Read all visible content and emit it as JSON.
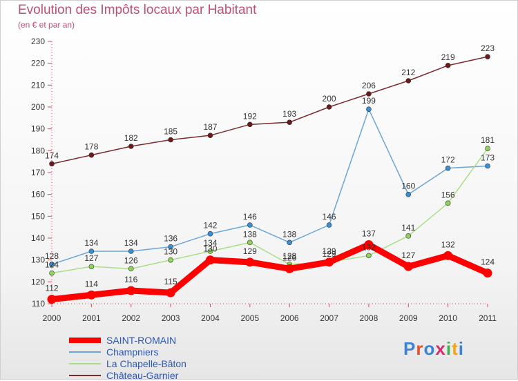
{
  "title": "Evolution des Impôts locaux par Habitant",
  "subtitle": "(en € et par an)",
  "logo": {
    "letters": [
      "P",
      "r",
      "o",
      "x",
      "i",
      "t",
      "i"
    ],
    "colors": [
      "#3b82d6",
      "#e0512f",
      "#3b82d6",
      "#d62b6e",
      "#3bb24a",
      "#f2a51a",
      "#3b82d6"
    ]
  },
  "chart_data": {
    "type": "line",
    "title": "Evolution des Impôts locaux par Habitant",
    "subtitle": "(en € et par an)",
    "xlabel": "",
    "ylabel": "",
    "categories": [
      "2000",
      "2001",
      "2002",
      "2003",
      "2004",
      "2005",
      "2006",
      "2007",
      "2008",
      "2009",
      "2010",
      "2011"
    ],
    "ylim": [
      110,
      230
    ],
    "yticks": [
      110,
      120,
      130,
      140,
      150,
      160,
      170,
      180,
      190,
      200,
      210,
      220,
      230
    ],
    "grid": false,
    "legend_position": "bottom-left",
    "series": [
      {
        "name": "SAINT-ROMAIN",
        "color": "#ff0000",
        "marker": "#ff0000",
        "emphasis": true,
        "values": [
          112,
          114,
          116,
          115,
          130,
          129,
          126,
          129,
          137,
          127,
          132,
          124
        ]
      },
      {
        "name": "Champniers",
        "color": "#6aa5d8",
        "marker": "#3a8fd0",
        "emphasis": false,
        "values": [
          128,
          134,
          134,
          136,
          142,
          146,
          138,
          146,
          199,
          160,
          172,
          173
        ]
      },
      {
        "name": "La Chapelle-Bâton",
        "color": "#a8df86",
        "marker": "#8fd35a",
        "emphasis": false,
        "values": [
          124,
          127,
          126,
          130,
          134,
          138,
          128,
          129,
          132,
          141,
          156,
          181
        ]
      },
      {
        "name": "Château-Garnier",
        "color": "#7a2a2a",
        "marker": "#6a1a1a",
        "emphasis": false,
        "values": [
          174,
          178,
          182,
          185,
          187,
          192,
          193,
          200,
          206,
          212,
          219,
          223
        ]
      }
    ]
  }
}
